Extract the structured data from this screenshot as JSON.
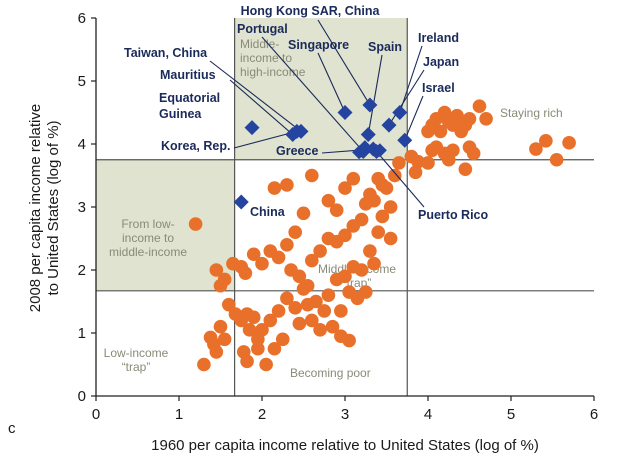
{
  "chart_data": {
    "type": "scatter",
    "panel_letter": "c",
    "xlabel": "1960 per capita income relative to United States (log of %)",
    "ylabel_lines": [
      "2008 per capita income relative",
      "to United States (log of %)"
    ],
    "xlim": [
      0,
      6
    ],
    "ylim": [
      0,
      6
    ],
    "x_ticks": [
      0,
      1,
      2,
      3,
      4,
      5,
      6
    ],
    "y_ticks": [
      0,
      1,
      2,
      3,
      4,
      5,
      6
    ],
    "grid": false,
    "threshold_x": [
      1.67,
      3.75
    ],
    "threshold_y": [
      1.67,
      3.75
    ],
    "region_labels": [
      {
        "id": "middle-to-high",
        "lines": [
          "Middle-",
          "income to",
          "high-income"
        ]
      },
      {
        "id": "low-to-middle",
        "lines": [
          "From low-",
          "income to",
          "middle-income"
        ]
      },
      {
        "id": "middle-trap",
        "lines": [
          "Middle-income",
          "“trap”"
        ]
      },
      {
        "id": "low-trap",
        "lines": [
          "Low-income",
          "“trap”"
        ]
      },
      {
        "id": "becoming-poor",
        "lines": [
          "Becoming poor"
        ]
      },
      {
        "id": "staying-rich",
        "lines": [
          "Staying rich"
        ]
      }
    ],
    "colors": {
      "other": "#e8702a",
      "highlight": "#2444a0",
      "shade": "#dfe3cf",
      "line": "#555555",
      "leader": "#1a2a5a"
    },
    "highlighted": [
      {
        "label": "Hong Kong SAR, China",
        "x": 3.3,
        "y": 4.62
      },
      {
        "label": "Ireland",
        "x": 3.66,
        "y": 4.5
      },
      {
        "label": "Japan",
        "x": 3.53,
        "y": 4.3
      },
      {
        "label": "Israel",
        "x": 3.72,
        "y": 4.06
      },
      {
        "label": "Spain",
        "x": 3.28,
        "y": 4.15
      },
      {
        "label": "Singapore",
        "x": 3.0,
        "y": 4.5
      },
      {
        "label": "Portugal",
        "x": 3.22,
        "y": 3.88
      },
      {
        "label": "Taiwan, China",
        "x": 2.47,
        "y": 4.2
      },
      {
        "label": "Mauritius",
        "x": 2.37,
        "y": 4.15
      },
      {
        "label": "Equatorial Guinea",
        "x": 1.88,
        "y": 4.26
      },
      {
        "label": "Korea, Rep.",
        "x": 2.42,
        "y": 4.2
      },
      {
        "label": "Greece",
        "x": 3.34,
        "y": 3.92
      },
      {
        "label": "Puerto Rico",
        "x": 3.38,
        "y": 3.88
      },
      {
        "label": "China",
        "x": 1.75,
        "y": 3.08
      }
    ],
    "extra_highlight_points": [
      {
        "x": 3.17,
        "y": 3.87
      },
      {
        "x": 3.24,
        "y": 3.95
      },
      {
        "x": 3.42,
        "y": 3.9
      }
    ],
    "others": [
      [
        1.2,
        2.73
      ],
      [
        1.3,
        0.5
      ],
      [
        1.38,
        0.93
      ],
      [
        1.42,
        0.82
      ],
      [
        1.5,
        1.1
      ],
      [
        1.45,
        0.7
      ],
      [
        1.55,
        0.9
      ],
      [
        1.6,
        1.45
      ],
      [
        1.68,
        1.3
      ],
      [
        1.75,
        1.2
      ],
      [
        1.82,
        1.3
      ],
      [
        1.9,
        1.25
      ],
      [
        1.78,
        0.7
      ],
      [
        1.82,
        0.55
      ],
      [
        1.95,
        0.75
      ],
      [
        2.05,
        0.5
      ],
      [
        2.15,
        0.75
      ],
      [
        2.25,
        0.9
      ],
      [
        2.0,
        1.05
      ],
      [
        2.1,
        1.2
      ],
      [
        2.2,
        1.35
      ],
      [
        2.3,
        1.55
      ],
      [
        2.4,
        1.4
      ],
      [
        2.5,
        1.7
      ],
      [
        2.55,
        1.45
      ],
      [
        2.65,
        1.5
      ],
      [
        2.75,
        1.35
      ],
      [
        2.85,
        1.1
      ],
      [
        2.95,
        0.95
      ],
      [
        3.05,
        0.88
      ],
      [
        2.8,
        1.6
      ],
      [
        2.9,
        1.85
      ],
      [
        3.0,
        1.9
      ],
      [
        3.1,
        2.05
      ],
      [
        3.2,
        2.0
      ],
      [
        3.35,
        2.1
      ],
      [
        2.6,
        2.15
      ],
      [
        2.7,
        2.3
      ],
      [
        2.8,
        2.5
      ],
      [
        2.9,
        2.45
      ],
      [
        3.0,
        2.55
      ],
      [
        3.1,
        2.7
      ],
      [
        3.2,
        2.8
      ],
      [
        3.25,
        3.05
      ],
      [
        3.3,
        3.2
      ],
      [
        3.35,
        3.1
      ],
      [
        3.45,
        3.35
      ],
      [
        3.5,
        3.3
      ],
      [
        3.6,
        3.5
      ],
      [
        3.1,
        3.45
      ],
      [
        3.0,
        3.3
      ],
      [
        2.9,
        2.95
      ],
      [
        2.8,
        3.1
      ],
      [
        2.5,
        2.9
      ],
      [
        2.4,
        2.6
      ],
      [
        2.3,
        2.4
      ],
      [
        2.2,
        2.2
      ],
      [
        2.1,
        2.3
      ],
      [
        2.0,
        2.1
      ],
      [
        1.9,
        2.25
      ],
      [
        1.8,
        1.95
      ],
      [
        1.75,
        2.05
      ],
      [
        1.65,
        2.1
      ],
      [
        1.55,
        1.85
      ],
      [
        1.45,
        2.0
      ],
      [
        1.5,
        1.75
      ],
      [
        2.15,
        3.3
      ],
      [
        2.3,
        3.35
      ],
      [
        2.6,
        3.5
      ],
      [
        2.35,
        2.0
      ],
      [
        2.45,
        1.9
      ],
      [
        2.55,
        1.75
      ],
      [
        1.95,
        0.9
      ],
      [
        1.85,
        1.05
      ],
      [
        2.45,
        1.15
      ],
      [
        2.6,
        1.2
      ],
      [
        2.7,
        1.05
      ],
      [
        3.55,
        2.5
      ],
      [
        3.05,
        1.65
      ],
      [
        3.15,
        1.55
      ],
      [
        3.25,
        1.65
      ],
      [
        2.95,
        1.35
      ],
      [
        3.3,
        2.3
      ],
      [
        3.4,
        2.6
      ],
      [
        3.45,
        2.85
      ],
      [
        3.55,
        3.0
      ],
      [
        3.4,
        3.45
      ],
      [
        3.65,
        3.7
      ],
      [
        3.8,
        3.8
      ],
      [
        3.88,
        3.72
      ],
      [
        3.85,
        3.55
      ],
      [
        4.05,
        4.3
      ],
      [
        4.1,
        4.4
      ],
      [
        4.15,
        4.2
      ],
      [
        4.2,
        4.5
      ],
      [
        4.25,
        4.35
      ],
      [
        4.3,
        4.3
      ],
      [
        4.35,
        4.45
      ],
      [
        4.4,
        4.2
      ],
      [
        4.45,
        4.3
      ],
      [
        4.5,
        4.4
      ],
      [
        4.55,
        3.85
      ],
      [
        4.5,
        3.95
      ],
      [
        4.62,
        4.6
      ],
      [
        4.7,
        4.4
      ],
      [
        4.0,
        4.2
      ],
      [
        4.05,
        3.9
      ],
      [
        4.1,
        3.95
      ],
      [
        4.2,
        3.85
      ],
      [
        4.25,
        3.75
      ],
      [
        4.3,
        3.9
      ],
      [
        4.45,
        3.6
      ],
      [
        4.0,
        3.7
      ],
      [
        5.3,
        3.92
      ],
      [
        5.55,
        3.75
      ],
      [
        5.7,
        4.02
      ],
      [
        5.42,
        4.05
      ]
    ]
  }
}
